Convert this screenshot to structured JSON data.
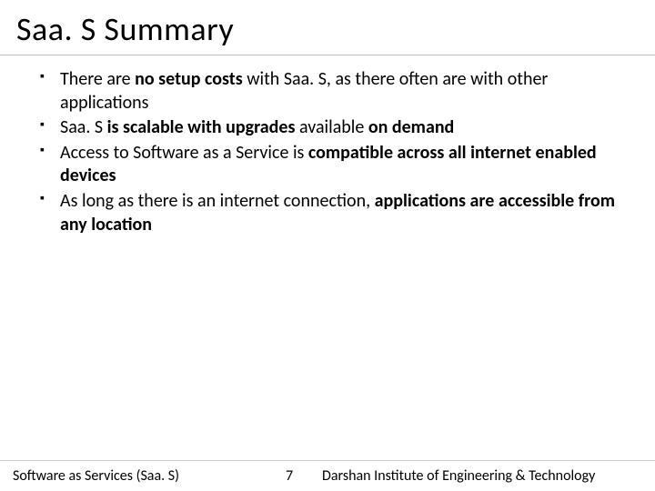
{
  "title": "Saa. S Summary",
  "bullets": [
    {
      "justify": false,
      "runs": [
        {
          "t": "There are ",
          "b": false
        },
        {
          "t": "no setup costs",
          "b": true
        },
        {
          "t": " with Saa. S, as there often are with other applications",
          "b": false
        }
      ]
    },
    {
      "justify": false,
      "runs": [
        {
          "t": "Saa. S ",
          "b": false
        },
        {
          "t": "is scalable with upgrades",
          "b": true
        },
        {
          "t": " available ",
          "b": false
        },
        {
          "t": "on demand",
          "b": true
        }
      ]
    },
    {
      "justify": false,
      "runs": [
        {
          "t": "Access to Software as a Service is ",
          "b": false
        },
        {
          "t": "compatible across all internet enabled devices",
          "b": true
        }
      ]
    },
    {
      "justify": true,
      "runs": [
        {
          "t": "As long as there is an internet connection, ",
          "b": false
        },
        {
          "t": "applications are accessible from any location",
          "b": true
        }
      ]
    }
  ],
  "footer": {
    "left": "Software as Services (Saa. S)",
    "page": "7",
    "right": "Darshan Institute of Engineering & Technology"
  },
  "colors": {
    "text": "#000000",
    "divider": "#bfbfbf",
    "background": "#ffffff"
  },
  "typography": {
    "title_fontsize": 36,
    "bullet_fontsize": 20,
    "footer_fontsize": 16,
    "font_family": "Calibri"
  }
}
